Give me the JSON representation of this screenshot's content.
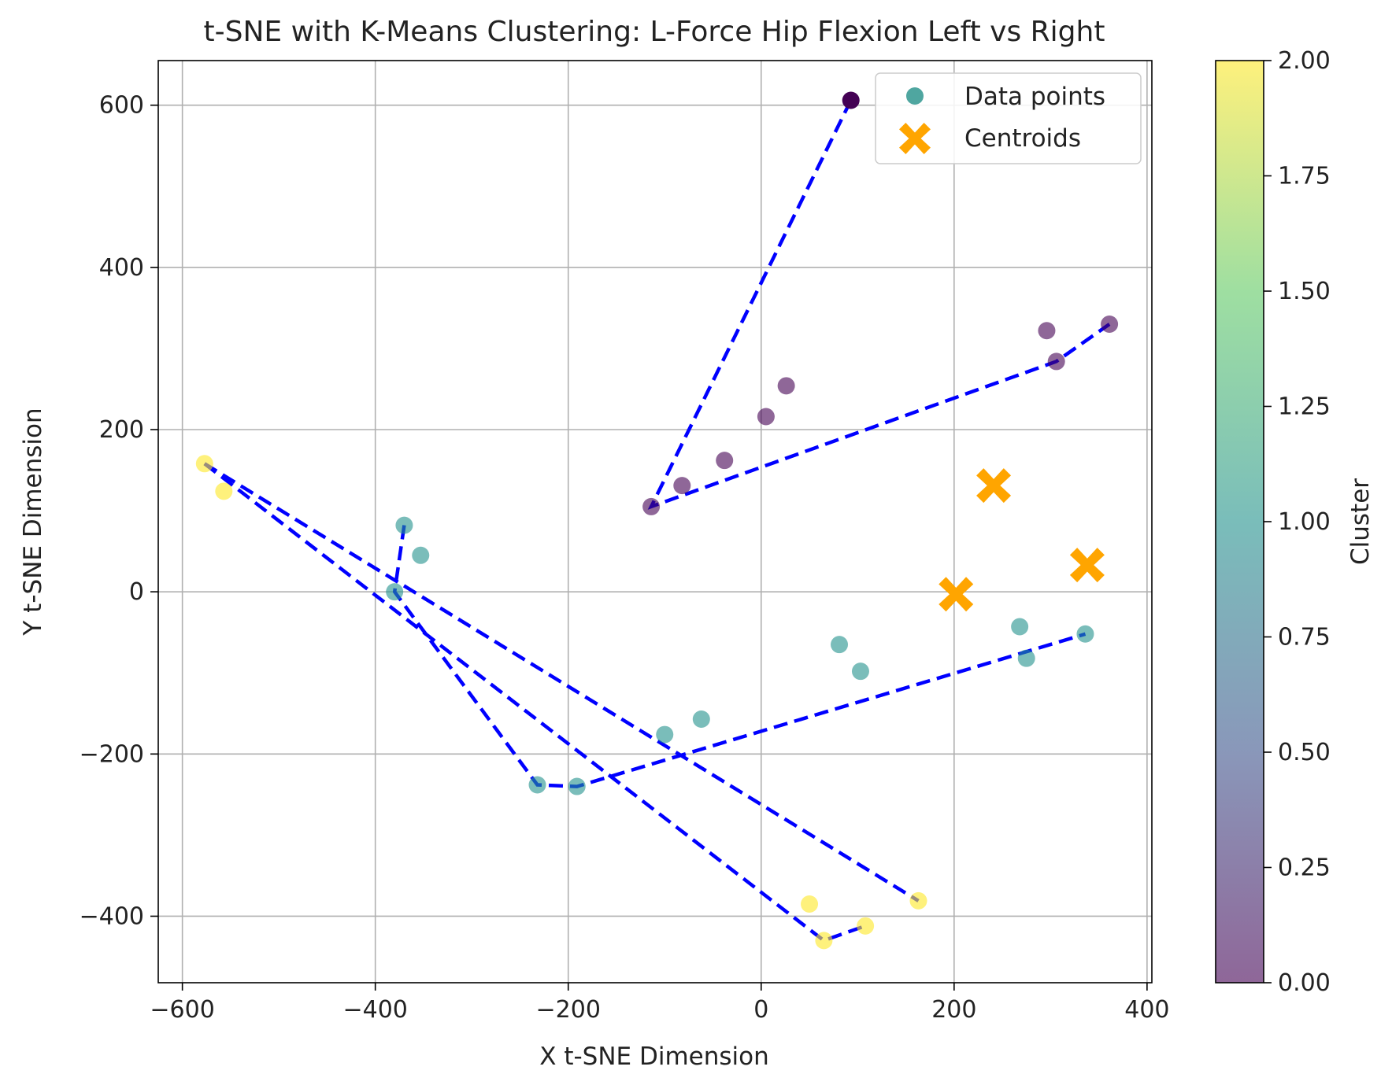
{
  "chart_data": {
    "type": "scatter",
    "title": "t-SNE with K-Means Clustering: L-Force Hip Flexion Left vs Right",
    "xlabel": "X t-SNE Dimension",
    "ylabel": "Y t-SNE Dimension",
    "xlim": [
      -625,
      405
    ],
    "ylim": [
      -482,
      655
    ],
    "xticks": [
      -600,
      -400,
      -200,
      0,
      200,
      400
    ],
    "xtick_labels": [
      "−600",
      "−400",
      "−200",
      "0",
      "200",
      "400"
    ],
    "yticks": [
      -400,
      -200,
      0,
      200,
      400,
      600
    ],
    "ytick_labels": [
      "−400",
      "−200",
      "0",
      "200",
      "400",
      "600"
    ],
    "grid": true,
    "legend": {
      "placement": "top-right",
      "entries": [
        {
          "label": "Data points",
          "marker": "circle",
          "color": "#4fa6a0"
        },
        {
          "label": "Centroids",
          "marker": "x",
          "color": "#ffa500"
        }
      ]
    },
    "colorbar": {
      "label": "Cluster",
      "range": [
        0,
        2
      ],
      "ticks": [
        0.0,
        0.25,
        0.5,
        0.75,
        1.0,
        1.25,
        1.5,
        1.75,
        2.0
      ],
      "tick_labels": [
        "0.00",
        "0.25",
        "0.50",
        "0.75",
        "1.00",
        "1.25",
        "1.50",
        "1.75",
        "2.00"
      ],
      "colormap": [
        "#440154",
        "#3b528b",
        "#21918c",
        "#5ec962",
        "#fde725"
      ],
      "alpha": 0.6
    },
    "points": [
      {
        "x": 93,
        "y": 606,
        "cluster": 0,
        "alpha": 1.0
      },
      {
        "x": 361,
        "y": 330,
        "cluster": 0
      },
      {
        "x": 296,
        "y": 322,
        "cluster": 0
      },
      {
        "x": 306,
        "y": 284,
        "cluster": 0
      },
      {
        "x": 26,
        "y": 254,
        "cluster": 0
      },
      {
        "x": 5,
        "y": 216,
        "cluster": 0
      },
      {
        "x": -38,
        "y": 162,
        "cluster": 0
      },
      {
        "x": -82,
        "y": 131,
        "cluster": 0
      },
      {
        "x": -114,
        "y": 105,
        "cluster": 0
      },
      {
        "x": -370,
        "y": 82,
        "cluster": 1
      },
      {
        "x": -353,
        "y": 45,
        "cluster": 1
      },
      {
        "x": -380,
        "y": 0,
        "cluster": 1
      },
      {
        "x": 81,
        "y": -65,
        "cluster": 1
      },
      {
        "x": 103,
        "y": -98,
        "cluster": 1
      },
      {
        "x": 268,
        "y": -43,
        "cluster": 1
      },
      {
        "x": 275,
        "y": -82,
        "cluster": 1
      },
      {
        "x": 336,
        "y": -52,
        "cluster": 1
      },
      {
        "x": -62,
        "y": -157,
        "cluster": 1
      },
      {
        "x": -100,
        "y": -176,
        "cluster": 1
      },
      {
        "x": -232,
        "y": -238,
        "cluster": 1
      },
      {
        "x": -191,
        "y": -240,
        "cluster": 1
      },
      {
        "x": -577,
        "y": 158,
        "cluster": 2
      },
      {
        "x": -557,
        "y": 124,
        "cluster": 2
      },
      {
        "x": 163,
        "y": -381,
        "cluster": 2
      },
      {
        "x": 50,
        "y": -385,
        "cluster": 2
      },
      {
        "x": 108,
        "y": -412,
        "cluster": 2
      },
      {
        "x": 65,
        "y": -430,
        "cluster": 2
      }
    ],
    "centroids": [
      {
        "x": 241,
        "y": 131
      },
      {
        "x": 338,
        "y": 33
      },
      {
        "x": 202,
        "y": -3
      }
    ],
    "paths": [
      {
        "style": "dashed",
        "color": "#0000ff",
        "points": [
          [
            93,
            606
          ],
          [
            -114,
            105
          ],
          [
            306,
            284
          ],
          [
            361,
            330
          ]
        ]
      },
      {
        "style": "dashed",
        "color": "#0000ff",
        "points": [
          [
            -370,
            82
          ],
          [
            -380,
            0
          ],
          [
            -232,
            -238
          ],
          [
            -191,
            -240
          ],
          [
            336,
            -52
          ]
        ]
      },
      {
        "style": "dashed",
        "color": "#0000ff",
        "points": [
          [
            -577,
            158
          ],
          [
            163,
            -381
          ]
        ]
      },
      {
        "style": "dashed",
        "color": "#0000ff",
        "points": [
          [
            -577,
            158
          ],
          [
            65,
            -430
          ],
          [
            108,
            -412
          ]
        ]
      }
    ]
  }
}
